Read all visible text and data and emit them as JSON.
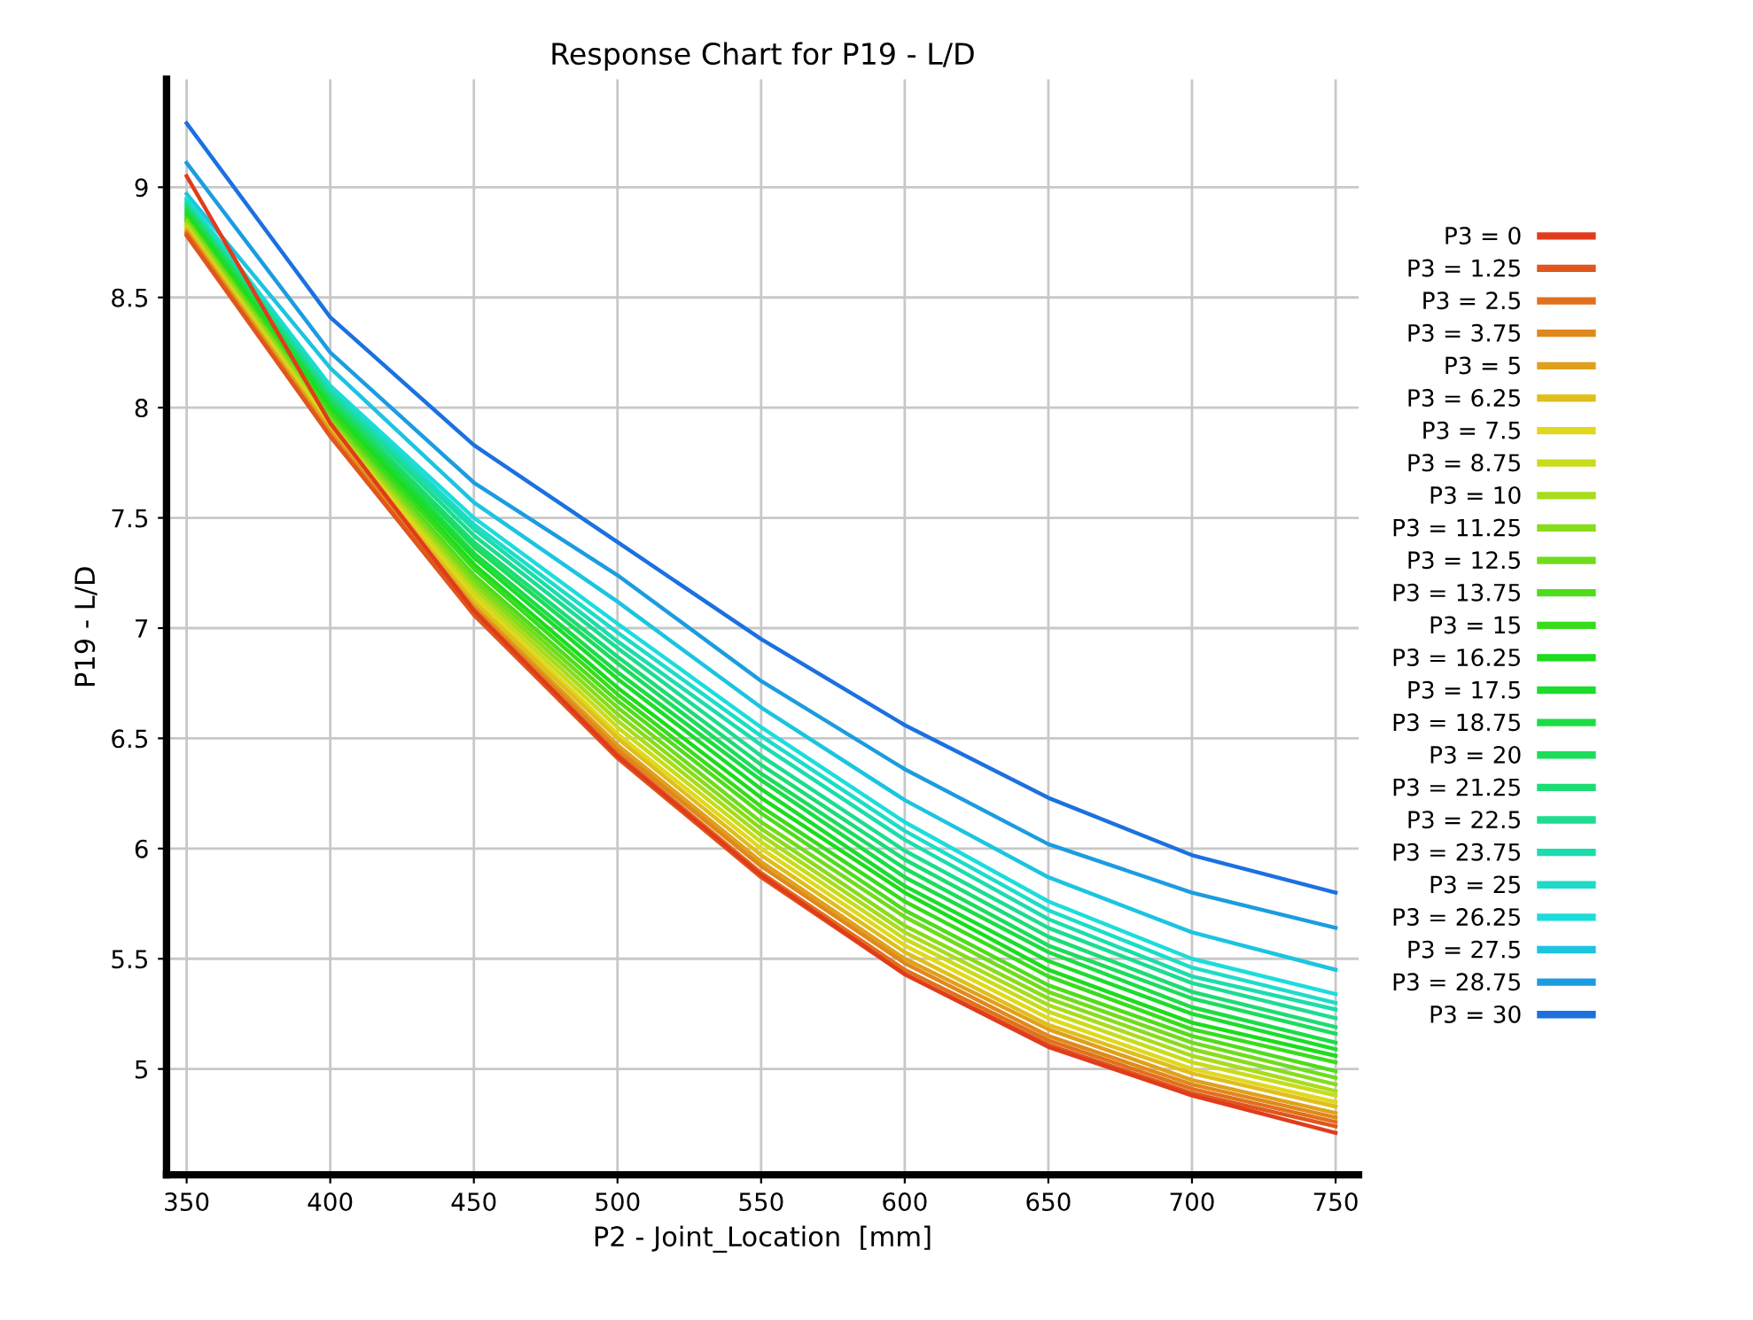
{
  "chart_data": {
    "type": "line",
    "title": "Response Chart for P19 - L/D",
    "xlabel": "P2 - Joint_Location  [mm]",
    "ylabel": "P19 - L/D",
    "x": [
      350,
      400,
      450,
      500,
      550,
      600,
      650,
      700,
      750
    ],
    "xlim": [
      343,
      758
    ],
    "xticks": [
      350,
      400,
      450,
      500,
      550,
      600,
      650,
      700,
      750
    ],
    "ylim": [
      4.52,
      9.49
    ],
    "yticks": [
      5,
      5.5,
      6,
      6.5,
      7,
      7.5,
      8,
      8.5,
      9
    ],
    "grid": true,
    "legend": "right",
    "marker": "none",
    "line_style": "solid",
    "series": [
      {
        "name": "P3 = 0",
        "color": "#e03c1c",
        "values": [
          9.05,
          7.93,
          7.08,
          6.42,
          5.88,
          5.43,
          5.1,
          4.88,
          4.71
        ]
      },
      {
        "name": "P3 = 1.25",
        "color": "#e0561c",
        "values": [
          8.78,
          7.87,
          7.06,
          6.41,
          5.87,
          5.43,
          5.11,
          4.89,
          4.74
        ]
      },
      {
        "name": "P3 = 2.5",
        "color": "#e0701c",
        "values": [
          8.79,
          7.87,
          7.07,
          6.43,
          5.89,
          5.45,
          5.13,
          4.91,
          4.76
        ]
      },
      {
        "name": "P3 = 3.75",
        "color": "#e0881c",
        "values": [
          8.79,
          7.88,
          7.09,
          6.45,
          5.92,
          5.48,
          5.15,
          4.93,
          4.78
        ]
      },
      {
        "name": "P3 = 5",
        "color": "#e0a01c",
        "values": [
          8.8,
          7.89,
          7.1,
          6.47,
          5.94,
          5.5,
          5.18,
          4.95,
          4.8
        ]
      },
      {
        "name": "P3 = 6.25",
        "color": "#e0be1c",
        "values": [
          8.81,
          7.9,
          7.12,
          6.5,
          5.97,
          5.53,
          5.2,
          4.98,
          4.83
        ]
      },
      {
        "name": "P3 = 7.5",
        "color": "#e0d81c",
        "values": [
          8.81,
          7.91,
          7.14,
          6.52,
          6.0,
          5.56,
          5.23,
          5.0,
          4.85
        ]
      },
      {
        "name": "P3 = 8.75",
        "color": "#c8dc1c",
        "values": [
          8.82,
          7.92,
          7.16,
          6.55,
          6.03,
          5.59,
          5.26,
          5.03,
          4.88
        ]
      },
      {
        "name": "P3 = 10",
        "color": "#a8dc1c",
        "values": [
          8.83,
          7.93,
          7.18,
          6.58,
          6.06,
          5.62,
          5.29,
          5.06,
          4.9
        ]
      },
      {
        "name": "P3 = 11.25",
        "color": "#88dc1c",
        "values": [
          8.84,
          7.94,
          7.2,
          6.61,
          6.09,
          5.65,
          5.32,
          5.09,
          4.93
        ]
      },
      {
        "name": "P3 = 12.5",
        "color": "#70dc1c",
        "values": [
          8.85,
          7.95,
          7.22,
          6.64,
          6.12,
          5.69,
          5.35,
          5.12,
          4.96
        ]
      },
      {
        "name": "P3 = 13.75",
        "color": "#50dc1c",
        "values": [
          8.85,
          7.96,
          7.24,
          6.67,
          6.16,
          5.72,
          5.38,
          5.15,
          4.99
        ]
      },
      {
        "name": "P3 = 15",
        "color": "#38dc1c",
        "values": [
          8.86,
          7.98,
          7.27,
          6.7,
          6.19,
          5.76,
          5.42,
          5.18,
          5.03
        ]
      },
      {
        "name": "P3 = 16.25",
        "color": "#1cdc1c",
        "values": [
          8.87,
          7.99,
          7.29,
          6.73,
          6.23,
          5.8,
          5.45,
          5.21,
          5.06
        ]
      },
      {
        "name": "P3 = 17.5",
        "color": "#1cdc2c",
        "values": [
          8.88,
          8.0,
          7.32,
          6.77,
          6.27,
          5.83,
          5.49,
          5.25,
          5.09
        ]
      },
      {
        "name": "P3 = 18.75",
        "color": "#1cdc44",
        "values": [
          8.89,
          8.02,
          7.34,
          6.8,
          6.31,
          5.87,
          5.53,
          5.28,
          5.12
        ]
      },
      {
        "name": "P3 = 20",
        "color": "#1cdc5c",
        "values": [
          8.9,
          8.03,
          7.37,
          6.84,
          6.34,
          5.91,
          5.56,
          5.32,
          5.16
        ]
      },
      {
        "name": "P3 = 21.25",
        "color": "#1cdc74",
        "values": [
          8.91,
          8.04,
          7.39,
          6.87,
          6.38,
          5.95,
          5.6,
          5.35,
          5.19
        ]
      },
      {
        "name": "P3 = 22.5",
        "color": "#1cdc90",
        "values": [
          8.92,
          8.06,
          7.42,
          6.91,
          6.42,
          5.99,
          5.64,
          5.39,
          5.23
        ]
      },
      {
        "name": "P3 = 23.75",
        "color": "#1cdcac",
        "values": [
          8.93,
          8.07,
          7.45,
          6.94,
          6.47,
          6.04,
          5.68,
          5.42,
          5.27
        ]
      },
      {
        "name": "P3 = 25",
        "color": "#1cdcc8",
        "values": [
          8.94,
          8.09,
          7.47,
          6.98,
          6.51,
          6.08,
          5.72,
          5.46,
          5.3
        ]
      },
      {
        "name": "P3 = 26.25",
        "color": "#1cdcdc",
        "values": [
          8.95,
          8.1,
          7.5,
          7.02,
          6.55,
          6.12,
          5.76,
          5.5,
          5.34
        ]
      },
      {
        "name": "P3 = 27.5",
        "color": "#1cc4e0",
        "values": [
          8.97,
          8.18,
          7.57,
          7.12,
          6.64,
          6.22,
          5.87,
          5.62,
          5.45
        ]
      },
      {
        "name": "P3 = 28.75",
        "color": "#1c9ce0",
        "values": [
          9.11,
          8.25,
          7.66,
          7.24,
          6.76,
          6.36,
          6.02,
          5.8,
          5.64
        ]
      },
      {
        "name": "P3 = 30",
        "color": "#1c70e0",
        "values": [
          9.29,
          8.41,
          7.83,
          7.39,
          6.95,
          6.56,
          6.23,
          5.97,
          5.8
        ]
      }
    ]
  }
}
